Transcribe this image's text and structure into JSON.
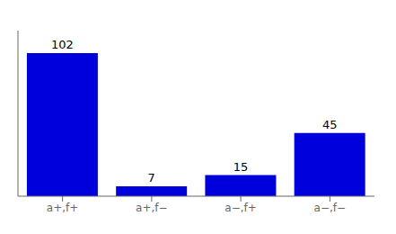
{
  "chart_data": {
    "type": "bar",
    "categories": [
      "a+,f+",
      "a+,f−",
      "a−,f+",
      "a−,f−"
    ],
    "values": [
      102,
      7,
      15,
      45
    ],
    "color": "#0000dd",
    "ylim": [
      0,
      118
    ],
    "data_labels": true,
    "tick_labels": "x",
    "grid": false
  }
}
